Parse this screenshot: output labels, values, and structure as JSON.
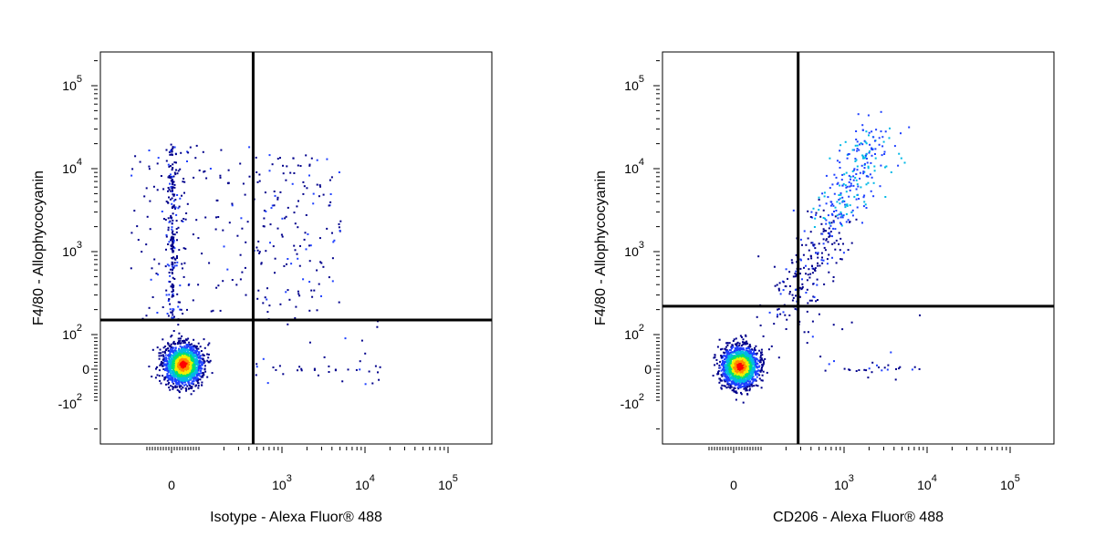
{
  "chart_data": [
    {
      "type": "scatter",
      "subtype": "flow-cytometry-density-dot-plot",
      "title": "",
      "xlabel": "Isotype - Alexa Fluor® 488",
      "ylabel": "F4/80 - Allophycocyanin",
      "x_scale": "biexponential",
      "y_scale": "biexponential",
      "x_ticks": [
        {
          "value": 0,
          "label": "0",
          "exp": ""
        },
        {
          "value": 1000,
          "label": "10",
          "exp": "3"
        },
        {
          "value": 10000,
          "label": "10",
          "exp": "4"
        },
        {
          "value": 100000,
          "label": "10",
          "exp": "5"
        }
      ],
      "y_ticks": [
        {
          "value": -100,
          "label": "-10",
          "exp": "2"
        },
        {
          "value": 0,
          "label": "0",
          "exp": ""
        },
        {
          "value": 100,
          "label": "10",
          "exp": "2"
        },
        {
          "value": 1000,
          "label": "10",
          "exp": "3"
        },
        {
          "value": 10000,
          "label": "10",
          "exp": "4"
        },
        {
          "value": 100000,
          "label": "10",
          "exp": "5"
        }
      ],
      "quadrant_gate": {
        "x": 450,
        "y": 150
      },
      "populations": [
        {
          "name": "double-negative",
          "x_center": 40,
          "y_center": 15,
          "density": "very high",
          "approx_events": 1800
        },
        {
          "name": "F4/80-positive isotype-negative",
          "x_range": [
            -150,
            400
          ],
          "y_range": [
            150,
            20000
          ],
          "density": "low",
          "approx_events": 350
        },
        {
          "name": "F4/80-positive isotype-positive",
          "x_range": [
            450,
            5000
          ],
          "y_range": [
            150,
            15000
          ],
          "density": "low",
          "approx_events": 150
        },
        {
          "name": "isotype-positive F4/80-negative",
          "x_range": [
            450,
            15000
          ],
          "y_range": [
            -50,
            150
          ],
          "density": "very low",
          "approx_events": 40
        }
      ],
      "grid": false,
      "legend": "none"
    },
    {
      "type": "scatter",
      "subtype": "flow-cytometry-density-dot-plot",
      "title": "",
      "xlabel": "CD206 - Alexa Fluor® 488",
      "ylabel": "F4/80 - Allophycocyanin",
      "x_scale": "biexponential",
      "y_scale": "biexponential",
      "x_ticks": [
        {
          "value": 0,
          "label": "0",
          "exp": ""
        },
        {
          "value": 1000,
          "label": "10",
          "exp": "3"
        },
        {
          "value": 10000,
          "label": "10",
          "exp": "4"
        },
        {
          "value": 100000,
          "label": "10",
          "exp": "5"
        }
      ],
      "y_ticks": [
        {
          "value": -100,
          "label": "-10",
          "exp": "2"
        },
        {
          "value": 0,
          "label": "0",
          "exp": ""
        },
        {
          "value": 100,
          "label": "10",
          "exp": "2"
        },
        {
          "value": 1000,
          "label": "10",
          "exp": "3"
        },
        {
          "value": 10000,
          "label": "10",
          "exp": "4"
        },
        {
          "value": 100000,
          "label": "10",
          "exp": "5"
        }
      ],
      "quadrant_gate": {
        "x": 280,
        "y": 220
      },
      "populations": [
        {
          "name": "double-negative",
          "x_center": 20,
          "y_center": 10,
          "density": "very high",
          "approx_events": 1700
        },
        {
          "name": "F4/80+ CD206+ diagonal",
          "x_range": [
            150,
            2500
          ],
          "y_range": [
            100,
            30000
          ],
          "density": "medium",
          "approx_events": 450
        },
        {
          "name": "CD206-positive F4/80-negative",
          "x_range": [
            350,
            8000
          ],
          "y_range": [
            -40,
            200
          ],
          "density": "very low",
          "approx_events": 35
        }
      ],
      "grid": false,
      "legend": "none"
    }
  ],
  "colors": {
    "density_scale": [
      "#00008b",
      "#1e40ff",
      "#00b8e6",
      "#00e070",
      "#f0f000",
      "#ff8c00",
      "#ff0000"
    ],
    "gate_line": "#000000",
    "axis": "#000000"
  }
}
